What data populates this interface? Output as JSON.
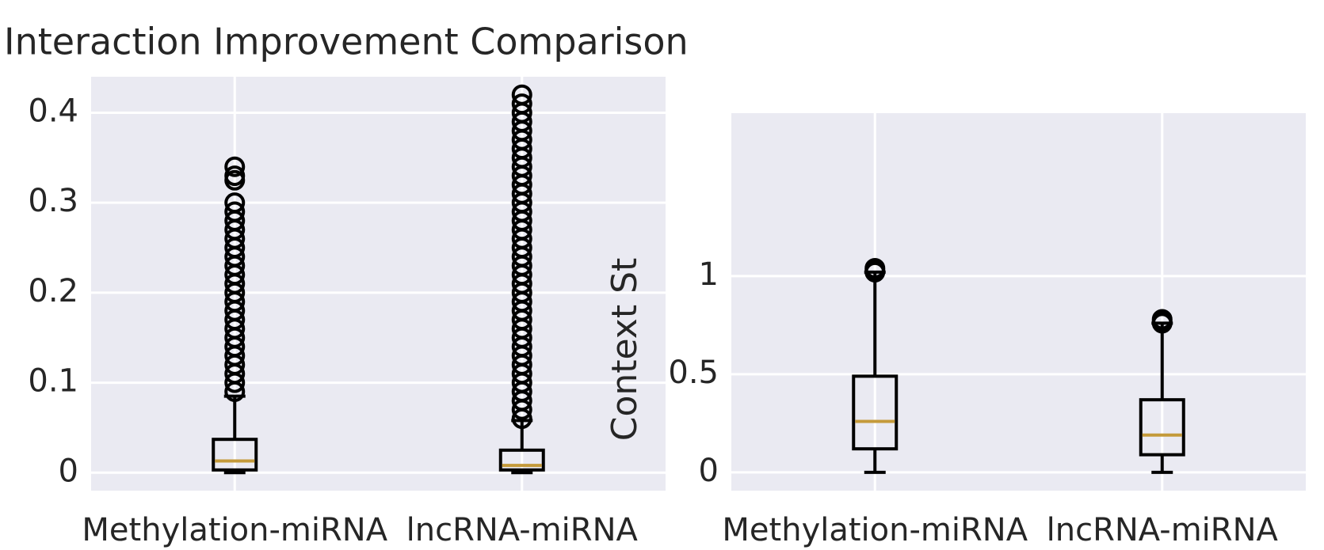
{
  "chart_data": [
    {
      "type": "box",
      "title": "Interaction Improvement Comparison",
      "categories": [
        "Methylation-miRNA",
        "lncRNA-miRNA"
      ],
      "boxes": [
        {
          "whisker_low": 0.0,
          "q1": 0.003,
          "median": 0.013,
          "q3": 0.037,
          "whisker_high": 0.085,
          "outliers": [
            0.09,
            0.1,
            0.11,
            0.12,
            0.13,
            0.14,
            0.15,
            0.16,
            0.17,
            0.18,
            0.19,
            0.2,
            0.21,
            0.22,
            0.23,
            0.24,
            0.25,
            0.26,
            0.27,
            0.28,
            0.29,
            0.3,
            0.325,
            0.33,
            0.34
          ]
        },
        {
          "whisker_low": 0.0,
          "q1": 0.003,
          "median": 0.008,
          "q3": 0.025,
          "whisker_high": 0.058,
          "outliers": [
            0.06,
            0.07,
            0.08,
            0.09,
            0.1,
            0.11,
            0.12,
            0.13,
            0.14,
            0.15,
            0.16,
            0.17,
            0.18,
            0.19,
            0.2,
            0.21,
            0.22,
            0.23,
            0.24,
            0.25,
            0.26,
            0.27,
            0.28,
            0.29,
            0.3,
            0.31,
            0.32,
            0.33,
            0.34,
            0.35,
            0.36,
            0.37,
            0.38,
            0.39,
            0.4,
            0.41,
            0.42
          ]
        }
      ],
      "ylim": [
        -0.02,
        0.44
      ],
      "yticks": [
        0.0,
        0.1,
        0.2,
        0.3,
        0.4
      ],
      "box_color": "#000000",
      "median_color": "#c49a3a",
      "background": "#eaeaf2",
      "grid": true
    },
    {
      "type": "box",
      "ylabel": "Context St",
      "categories": [
        "Methylation-miRNA",
        "lncRNA-miRNA"
      ],
      "boxes": [
        {
          "whisker_low": 0.0,
          "q1": 0.12,
          "median": 0.26,
          "q3": 0.49,
          "whisker_high": 1.02,
          "outliers": [
            1.02,
            1.03,
            1.04
          ]
        },
        {
          "whisker_low": 0.0,
          "q1": 0.09,
          "median": 0.19,
          "q3": 0.37,
          "whisker_high": 0.76,
          "outliers": [
            0.76,
            0.77,
            0.78
          ]
        }
      ],
      "ylim": [
        -0.093,
        1.83
      ],
      "yticks": [
        0.0,
        0.5,
        1.0
      ],
      "box_color": "#000000",
      "median_color": "#c49a3a",
      "background": "#eaeaf2",
      "grid": true
    }
  ]
}
